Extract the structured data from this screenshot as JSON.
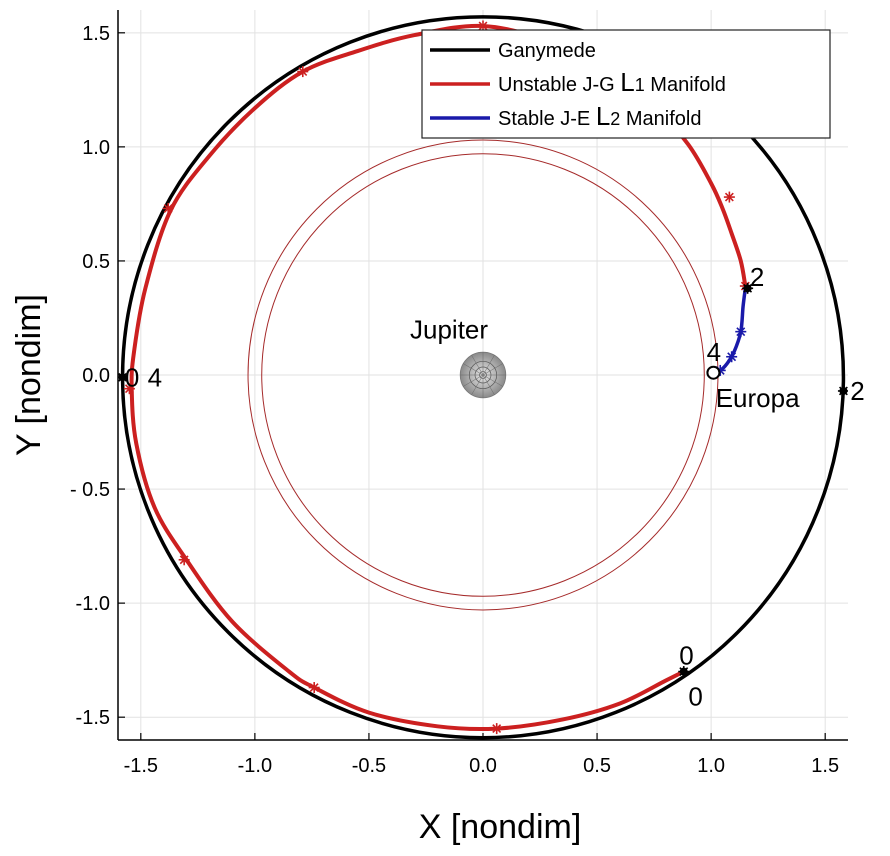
{
  "chart_data": {
    "type": "line",
    "title": "",
    "xlabel": "X [nondim]",
    "ylabel": "Y [nondim]",
    "xlim": [
      -1.6,
      1.6
    ],
    "ylim": [
      -1.6,
      1.6
    ],
    "x_ticks": [
      -1.5,
      -1.0,
      -0.5,
      0.0,
      0.5,
      1.0,
      1.5
    ],
    "x_tick_labels": [
      "-1.5",
      "-1.0",
      "-0.5",
      "0.0",
      "0.5",
      "1.0",
      "1.5"
    ],
    "y_ticks": [
      1.5,
      1.0,
      0.5,
      0.0,
      -0.5,
      -1.0,
      -1.5
    ],
    "y_tick_labels": [
      "1.5",
      "1.0",
      "0.5",
      "0.0",
      "- 0.5",
      "-1.0",
      "-1.5"
    ],
    "grid": true,
    "legend_position": "top-right",
    "legend": [
      {
        "label": "Ganymede",
        "color": "#000000"
      },
      {
        "label": "Unstable J-G L1 Manifold",
        "prefix": "Unstable J-G ",
        "sym": "L",
        "sub": "1",
        "suffix": " Manifold",
        "color": "#cc2020"
      },
      {
        "label": "Stable J-E L2 Manifold",
        "prefix": "Stable J-E ",
        "sym": "L",
        "sub": "2",
        "suffix": " Manifold",
        "color": "#1a1aaa"
      }
    ],
    "series": [
      {
        "name": "Ganymede",
        "color": "#000000",
        "kind": "circle",
        "radius": 1.58,
        "center": [
          0.0,
          -0.01
        ]
      },
      {
        "name": "Unstable J-G L1 Manifold",
        "color": "#cc2020",
        "x": [
          1.15,
          1.13,
          1.09,
          1.05,
          1.0,
          0.9,
          0.75,
          0.55,
          0.3,
          0.0,
          -0.3,
          -0.55,
          -0.79,
          -1.0,
          -1.2,
          -1.37,
          -1.48,
          -1.53,
          -1.54,
          -1.52,
          -1.44,
          -1.3,
          -1.1,
          -0.85,
          -0.74,
          -0.5,
          -0.2,
          0.06,
          0.35,
          0.6,
          0.8,
          0.88
        ],
        "y": [
          0.39,
          0.5,
          0.62,
          0.73,
          0.84,
          1.01,
          1.18,
          1.34,
          1.46,
          1.53,
          1.49,
          1.42,
          1.33,
          1.17,
          0.96,
          0.72,
          0.38,
          0.1,
          -0.06,
          -0.3,
          -0.58,
          -0.81,
          -1.08,
          -1.3,
          -1.37,
          -1.48,
          -1.54,
          -1.55,
          -1.51,
          -1.44,
          -1.34,
          -1.3
        ]
      },
      {
        "name": "Stable J-E L2 Manifold",
        "color": "#1a1aaa",
        "x": [
          1.15,
          1.14,
          1.13,
          1.1,
          1.07,
          1.04,
          1.01
        ],
        "y": [
          0.38,
          0.3,
          0.19,
          0.1,
          0.05,
          0.02,
          0.01
        ]
      }
    ],
    "markers": {
      "red_stars": [
        [
          1.15,
          0.39
        ],
        [
          1.08,
          0.78
        ],
        [
          0.0,
          1.53
        ],
        [
          -0.79,
          1.33
        ],
        [
          -1.38,
          0.73
        ],
        [
          -1.55,
          -0.06
        ],
        [
          -1.31,
          -0.81
        ],
        [
          -0.74,
          -1.37
        ],
        [
          0.06,
          -1.55
        ]
      ],
      "blue_stars": [
        [
          1.13,
          0.19
        ],
        [
          1.09,
          0.08
        ],
        [
          1.04,
          0.02
        ]
      ],
      "black_points": [
        [
          1.16,
          0.38
        ],
        [
          1.01,
          0.01
        ],
        [
          0.88,
          -1.3
        ],
        [
          -1.58,
          -0.01
        ],
        [
          1.58,
          -0.07
        ]
      ]
    },
    "inner_rings": {
      "color": "#a52a2a",
      "radii": [
        0.97,
        1.03
      ]
    },
    "annotations": [
      {
        "text": "Jupiter",
        "x": -0.32,
        "y": 0.2
      },
      {
        "text": "Europa",
        "x": 1.02,
        "y": -0.1
      },
      {
        "text": "2",
        "x": 1.17,
        "y": 0.43
      },
      {
        "text": "4",
        "x": 0.98,
        "y": 0.1
      },
      {
        "text": "0",
        "x": -1.57,
        "y": -0.01
      },
      {
        "text": "4",
        "x": -1.47,
        "y": -0.01
      },
      {
        "text": "2",
        "x": 1.61,
        "y": -0.07
      },
      {
        "text": "0",
        "x": 0.86,
        "y": -1.23
      },
      {
        "text": "0",
        "x": 0.9,
        "y": -1.41
      }
    ]
  }
}
